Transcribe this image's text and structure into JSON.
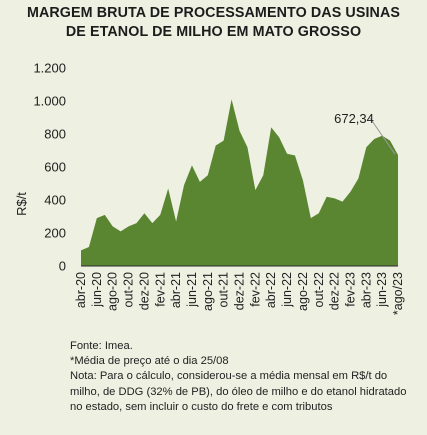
{
  "chart_data": {
    "type": "area",
    "title_lines": [
      "MARGEM BRUTA DE PROCESSAMENTO DAS USINAS",
      "DE ETANOL DE MILHO EM MATO GROSSO"
    ],
    "ylabel": "R$/t",
    "ylim": [
      0,
      1200
    ],
    "yticks": [
      0,
      200,
      400,
      600,
      800,
      1000,
      1200
    ],
    "ytick_labels": [
      "0",
      "200",
      "400",
      "600",
      "800",
      "1.000",
      "1.200"
    ],
    "x_labels": [
      "abr-20",
      "jun-20",
      "ago-20",
      "out-20",
      "dez-20",
      "fev-21",
      "abr-21",
      "jun-21",
      "ago-21",
      "out-21",
      "dez-21",
      "fev-22",
      "abr-22",
      "jun-22",
      "ago-22",
      "out-22",
      "dez-22",
      "fev-23",
      "abr-23",
      "jun-23",
      "*ago/23"
    ],
    "months": [
      "abr-20",
      "mai-20",
      "jun-20",
      "jul-20",
      "ago-20",
      "set-20",
      "out-20",
      "nov-20",
      "dez-20",
      "jan-21",
      "fev-21",
      "mar-21",
      "abr-21",
      "mai-21",
      "jun-21",
      "jul-21",
      "ago-21",
      "set-21",
      "out-21",
      "nov-21",
      "dez-21",
      "jan-22",
      "fev-22",
      "mar-22",
      "abr-22",
      "mai-22",
      "jun-22",
      "jul-22",
      "ago-22",
      "set-22",
      "out-22",
      "nov-22",
      "dez-22",
      "jan-23",
      "fev-23",
      "mar-23",
      "abr-23",
      "mai-23",
      "jun-23",
      "jul-23",
      "ago-23"
    ],
    "values": [
      95,
      115,
      290,
      310,
      240,
      210,
      240,
      260,
      320,
      260,
      310,
      470,
      270,
      490,
      610,
      510,
      550,
      730,
      760,
      1010,
      820,
      720,
      460,
      550,
      840,
      780,
      680,
      670,
      520,
      290,
      320,
      420,
      410,
      390,
      450,
      530,
      720,
      770,
      790,
      760,
      672.34
    ],
    "annotation": {
      "label": "672,34",
      "value": 672.34
    },
    "fill_color": "#5a8531",
    "grid": false
  },
  "notes": {
    "source": "Fonte: Imea.",
    "footnote": "*Média de preço até o dia 25/08",
    "note": "Nota: Para o cálculo, considerou-se a média mensal em R$/t do milho, de DDG (32% de PB), do óleo de milho e do etanol hidratado no estado, sem incluir o custo do frete e com tributos"
  }
}
